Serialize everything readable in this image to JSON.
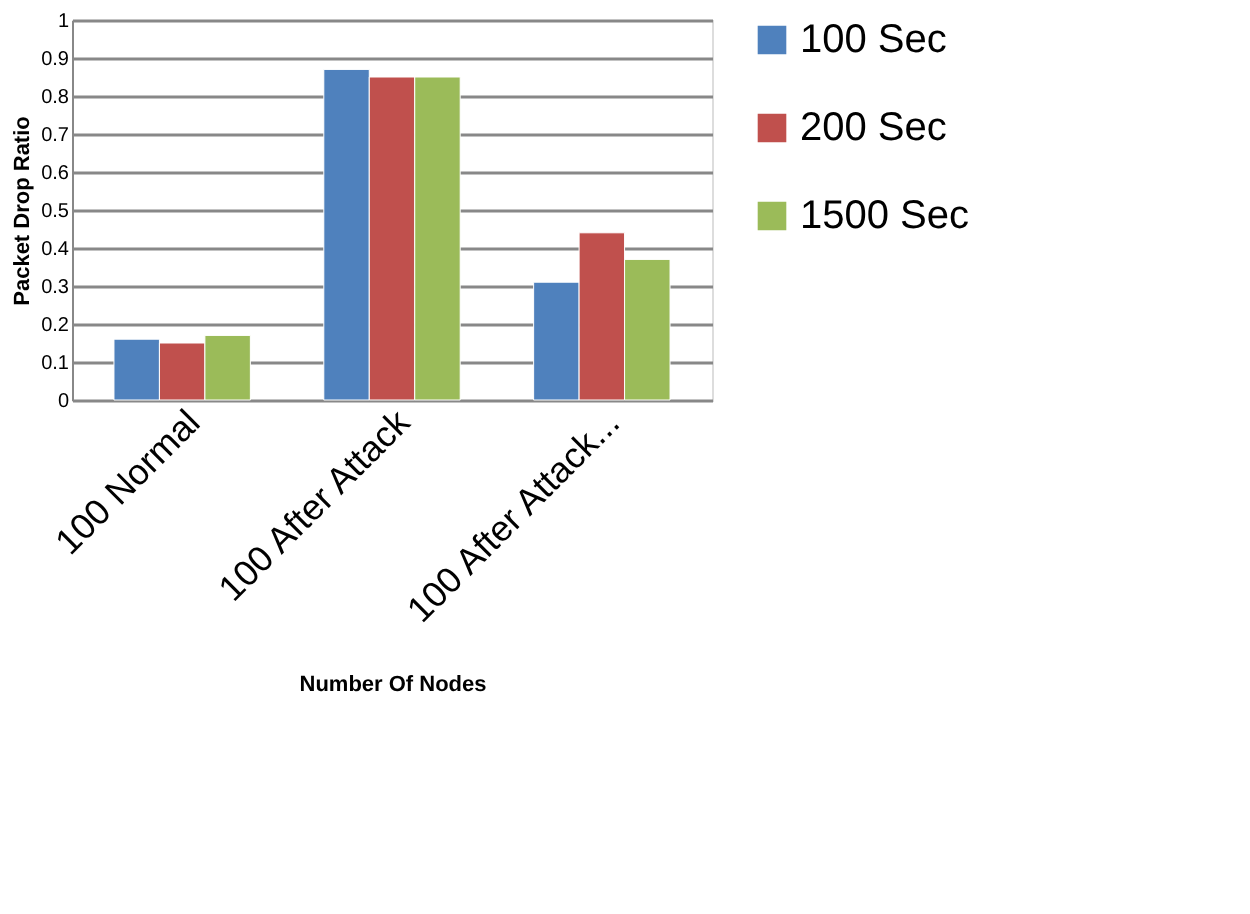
{
  "chart_data": {
    "type": "bar",
    "xlabel": "Number Of Nodes",
    "ylabel": "Packet Drop Ratio",
    "categories": [
      "100 Normal",
      "100 After Attack",
      "100 After Attack..."
    ],
    "series": [
      {
        "name": "100 Sec",
        "color": "#4f81bd",
        "values": [
          0.16,
          0.87,
          0.31
        ]
      },
      {
        "name": "200 Sec",
        "color": "#c0504d",
        "values": [
          0.15,
          0.85,
          0.44
        ]
      },
      {
        "name": "1500 Sec",
        "color": "#9bbb59",
        "values": [
          0.17,
          0.85,
          0.37
        ]
      }
    ],
    "ylim": [
      0,
      1
    ],
    "yticks": [
      0,
      0.1,
      0.2,
      0.3,
      0.4,
      0.5,
      0.6,
      0.7,
      0.8,
      0.9,
      1
    ],
    "grid": "y",
    "legend": "right"
  }
}
